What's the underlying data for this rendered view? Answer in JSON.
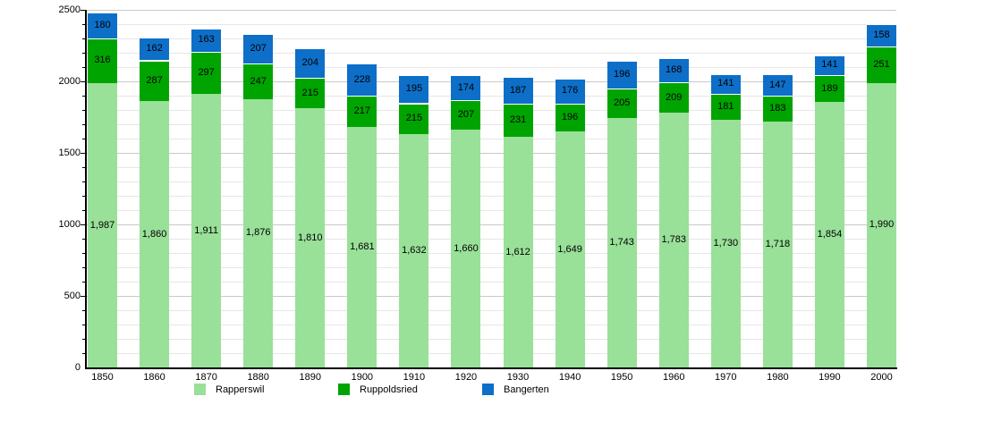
{
  "chart_data": {
    "type": "bar",
    "stacked": true,
    "title": "",
    "xlabel": "",
    "ylabel": "",
    "categories": [
      "1850",
      "1860",
      "1870",
      "1880",
      "1890",
      "1900",
      "1910",
      "1920",
      "1930",
      "1940",
      "1950",
      "1960",
      "1970",
      "1980",
      "1990",
      "2000"
    ],
    "series": [
      {
        "name": "Rapperswil",
        "color": "#99e099",
        "values": [
          1987,
          1860,
          1911,
          1876,
          1810,
          1681,
          1632,
          1660,
          1612,
          1649,
          1743,
          1783,
          1730,
          1718,
          1854,
          1990
        ]
      },
      {
        "name": "Ruppoldsried",
        "color": "#00a400",
        "values": [
          316,
          287,
          297,
          247,
          215,
          217,
          215,
          207,
          231,
          196,
          205,
          209,
          181,
          183,
          189,
          251
        ]
      },
      {
        "name": "Bangerten",
        "color": "#0d6fc8",
        "values": [
          180,
          162,
          163,
          207,
          204,
          228,
          195,
          174,
          187,
          176,
          196,
          168,
          141,
          147,
          141,
          158
        ]
      }
    ],
    "ylim": [
      0,
      2500
    ],
    "yticks": [
      0,
      500,
      1000,
      1500,
      2000,
      2500
    ],
    "minor_tick_step": 100,
    "grid": true,
    "legend_position": "bottom",
    "colors": {
      "minor_grid": "#e6e6e6",
      "major_grid": "#c9c9c9",
      "axis": "#000000",
      "label_text": "#000000"
    }
  }
}
